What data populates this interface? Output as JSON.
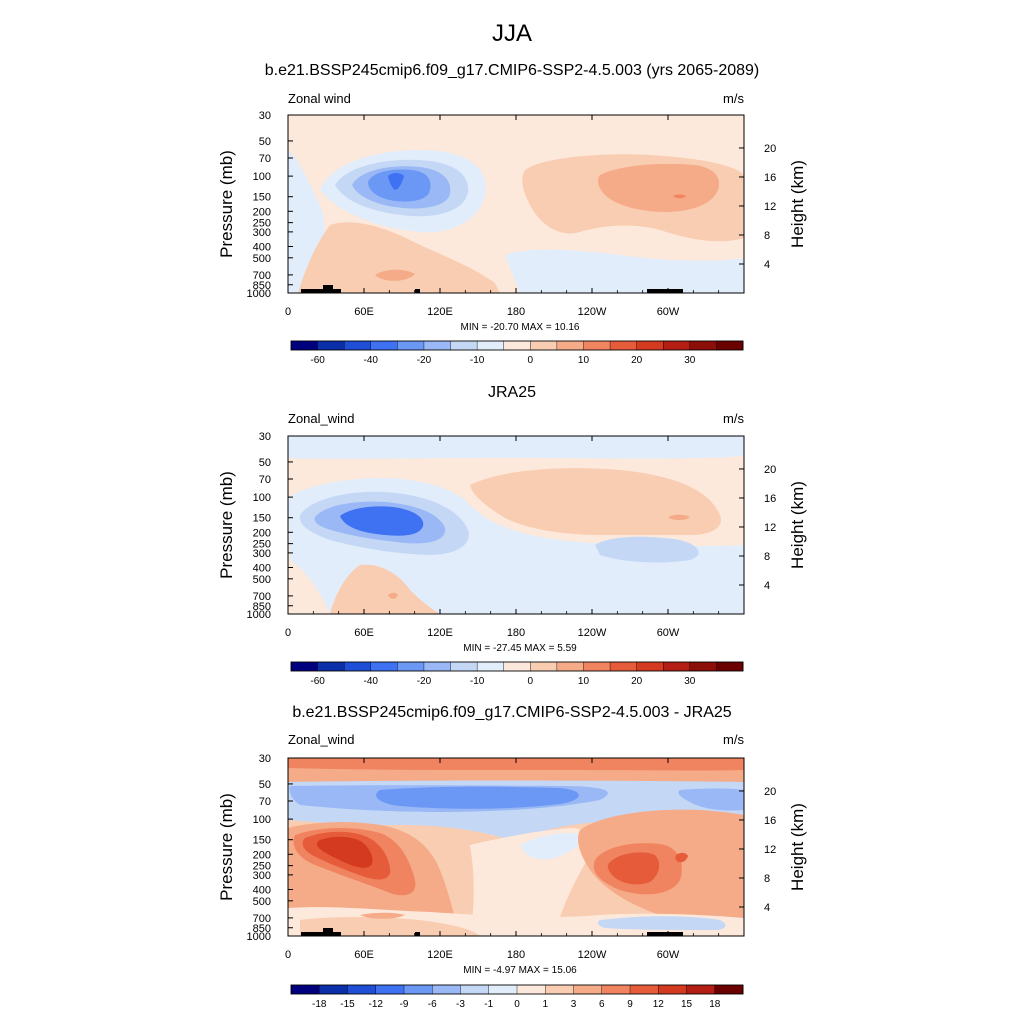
{
  "figure": {
    "title": "JJA"
  },
  "chart_data": [
    {
      "type": "heatmap",
      "title": "b.e21.BSSP245cmip6.f09_g17.CMIP6-SSP2-4.5.003 (yrs 2065-2089)",
      "left_label": "Zonal wind",
      "right_label": "m/s",
      "ylabel": "Pressure (mb)",
      "ylabel_right": "Height (km)",
      "x_ticks": [
        "0",
        "60E",
        "120E",
        "180",
        "120W",
        "60W"
      ],
      "y_ticks": [
        "30",
        "50",
        "70",
        "100",
        "150",
        "200",
        "250",
        "300",
        "400",
        "500",
        "700",
        "850",
        "1000"
      ],
      "height_ticks": [
        "20",
        "16",
        "12",
        "8",
        "4"
      ],
      "stats": "MIN = -20.70  MAX =  10.16",
      "min": -20.7,
      "max": 10.16,
      "colorbar": {
        "labels": [
          "-60",
          "-40",
          "-20",
          "-10",
          "0",
          "10",
          "20",
          "30"
        ],
        "colors": [
          "#00007f",
          "#0b2fa8",
          "#1f4fd6",
          "#3e72f2",
          "#6c98f5",
          "#99b8f5",
          "#c4d8f6",
          "#e2edfb",
          "#fde9dc",
          "#f9cdb2",
          "#f5ab88",
          "#f08460",
          "#e65c3b",
          "#d33a20",
          "#b51e14",
          "#8b0e08",
          "#6b0000"
        ]
      },
      "features": [
        {
          "kind": "blue core",
          "value_range": "-20 to -10",
          "x": "60E-110E",
          "y": "100-200 mb"
        },
        {
          "kind": "red band",
          "value_range": "5 to 10",
          "x": "150W-80W",
          "y": "100-200 mb"
        },
        {
          "kind": "easterly region",
          "value_range": "-5 to 0",
          "x": "180-100W",
          "y": "500-1000 mb"
        }
      ]
    },
    {
      "type": "heatmap",
      "title": "JRA25",
      "left_label": "Zonal_wind",
      "right_label": "m/s",
      "ylabel": "Pressure (mb)",
      "ylabel_right": "Height (km)",
      "x_ticks": [
        "0",
        "60E",
        "120E",
        "180",
        "120W",
        "60W"
      ],
      "y_ticks": [
        "30",
        "50",
        "70",
        "100",
        "150",
        "200",
        "250",
        "300",
        "400",
        "500",
        "700",
        "850",
        "1000"
      ],
      "height_ticks": [
        "20",
        "16",
        "12",
        "8",
        "4"
      ],
      "stats": "MIN = -27.45  MAX =   5.59",
      "min": -27.45,
      "max": 5.59,
      "colorbar": {
        "labels": [
          "-60",
          "-40",
          "-20",
          "-10",
          "0",
          "10",
          "20",
          "30"
        ],
        "colors": [
          "#00007f",
          "#0b2fa8",
          "#1f4fd6",
          "#3e72f2",
          "#6c98f5",
          "#99b8f5",
          "#c4d8f6",
          "#e2edfb",
          "#fde9dc",
          "#f9cdb2",
          "#f5ab88",
          "#f08460",
          "#e65c3b",
          "#d33a20",
          "#b51e14",
          "#8b0e08",
          "#6b0000"
        ]
      },
      "features": [
        {
          "kind": "blue core",
          "value_range": "-30 to -10",
          "x": "20E-110E",
          "y": "100-250 mb"
        },
        {
          "kind": "red band",
          "value_range": "0 to 5",
          "x": "120E-60W",
          "y": "50-250 mb"
        }
      ]
    },
    {
      "type": "heatmap",
      "title": "b.e21.BSSP245cmip6.f09_g17.CMIP6-SSP2-4.5.003 - JRA25",
      "left_label": "Zonal_wind",
      "right_label": "m/s",
      "ylabel": "Pressure (mb)",
      "ylabel_right": "Height (km)",
      "x_ticks": [
        "0",
        "60E",
        "120E",
        "180",
        "120W",
        "60W"
      ],
      "y_ticks": [
        "30",
        "50",
        "70",
        "100",
        "150",
        "200",
        "250",
        "300",
        "400",
        "500",
        "700",
        "850",
        "1000"
      ],
      "height_ticks": [
        "20",
        "16",
        "12",
        "8",
        "4"
      ],
      "stats": "MIN =  -4.97  MAX =  15.06",
      "min": -4.97,
      "max": 15.06,
      "colorbar": {
        "labels": [
          "-18",
          "-15",
          "-12",
          "-9",
          "-6",
          "-3",
          "-1",
          "0",
          "1",
          "3",
          "6",
          "9",
          "12",
          "15",
          "18"
        ],
        "colors": [
          "#00007f",
          "#0b2fa8",
          "#1f4fd6",
          "#3e72f2",
          "#6c98f5",
          "#99b8f5",
          "#c4d8f6",
          "#e2edfb",
          "#fde9dc",
          "#f9cdb2",
          "#f5ab88",
          "#f08460",
          "#e65c3b",
          "#d33a20",
          "#b51e14",
          "#6b0000"
        ]
      },
      "features": [
        {
          "kind": "red core",
          "value_range": "9 to 15",
          "x": "10E-80E",
          "y": "150-300 mb"
        },
        {
          "kind": "red core",
          "value_range": "6 to 12",
          "x": "120W-60W",
          "y": "150-300 mb"
        },
        {
          "kind": "blue band",
          "value_range": "-6 to -1",
          "x": "0-360",
          "y": "50-100 mb"
        },
        {
          "kind": "red band",
          "value_range": "3 to 9",
          "x": "0-360",
          "y": "30-40 mb"
        }
      ]
    }
  ]
}
